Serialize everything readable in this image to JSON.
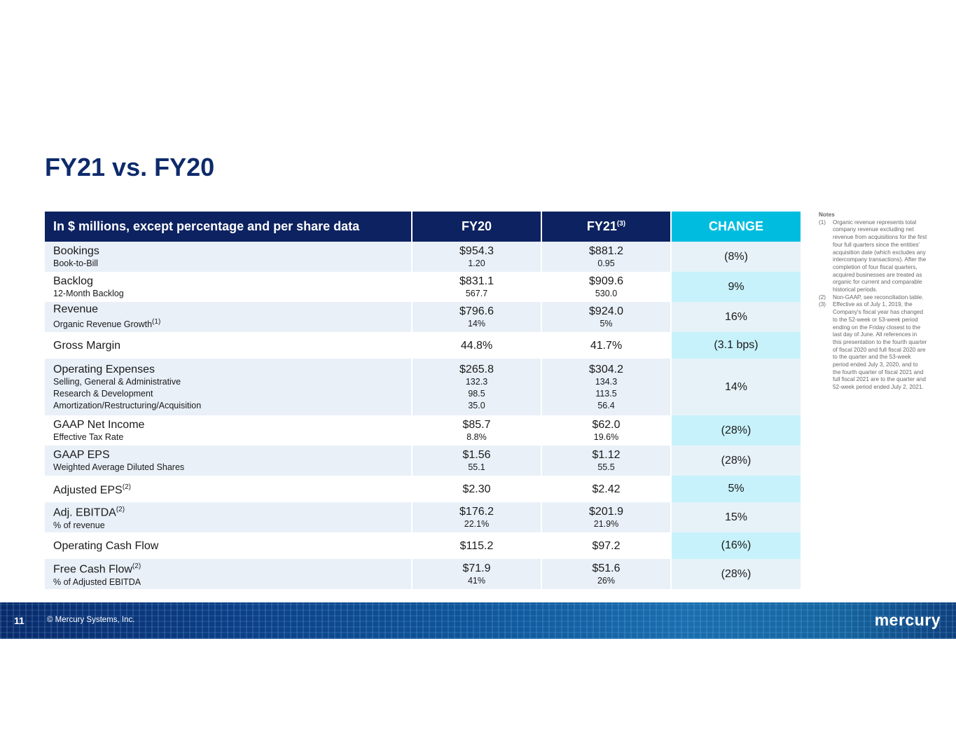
{
  "title": "FY21 vs. FY20",
  "table": {
    "headers": {
      "label": "In $ millions, except percentage and per share data",
      "fy20": "FY20",
      "fy21": "FY21",
      "fy21_sup": "(3)",
      "change": "CHANGE"
    },
    "rows": [
      {
        "label": "Bookings",
        "sub": [
          "Book-to-Bill"
        ],
        "fy20": "$954.3",
        "fy20_sub": [
          "1.20"
        ],
        "fy21": "$881.2",
        "fy21_sub": [
          "0.95"
        ],
        "change": "(8%)"
      },
      {
        "label": "Backlog",
        "sub": [
          "12-Month Backlog"
        ],
        "fy20": "$831.1",
        "fy20_sub": [
          "567.7"
        ],
        "fy21": "$909.6",
        "fy21_sub": [
          "530.0"
        ],
        "change": "9%"
      },
      {
        "label": "Revenue",
        "sub": [
          "Organic Revenue Growth"
        ],
        "sub_sup": "(1)",
        "fy20": "$796.6",
        "fy20_sub": [
          "14%"
        ],
        "fy21": "$924.0",
        "fy21_sub": [
          "5%"
        ],
        "change": "16%"
      },
      {
        "label": "Gross Margin",
        "fy20": "44.8%",
        "fy21": "41.7%",
        "change": "(3.1 bps)"
      },
      {
        "label": "Operating Expenses",
        "sub": [
          "Selling, General & Administrative",
          "Research & Development",
          "Amortization/Restructuring/Acquisition"
        ],
        "fy20": "$265.8",
        "fy20_sub": [
          "132.3",
          "98.5",
          "35.0"
        ],
        "fy21": "$304.2",
        "fy21_sub": [
          "134.3",
          "113.5",
          "56.4"
        ],
        "change": "14%"
      },
      {
        "label": "GAAP Net Income",
        "sub": [
          "Effective Tax Rate"
        ],
        "fy20": "$85.7",
        "fy20_sub": [
          "8.8%"
        ],
        "fy21": "$62.0",
        "fy21_sub": [
          "19.6%"
        ],
        "change": "(28%)"
      },
      {
        "label": "GAAP EPS",
        "sub": [
          "Weighted Average Diluted Shares"
        ],
        "fy20": "$1.56",
        "fy20_sub": [
          "55.1"
        ],
        "fy21": "$1.12",
        "fy21_sub": [
          "55.5"
        ],
        "change": "(28%)"
      },
      {
        "label": "Adjusted EPS",
        "label_sup": "(2)",
        "fy20": "$2.30",
        "fy21": "$2.42",
        "change": "5%"
      },
      {
        "label": "Adj. EBITDA",
        "label_sup": "(2)",
        "sub": [
          "% of revenue"
        ],
        "fy20": "$176.2",
        "fy20_sub": [
          "22.1%"
        ],
        "fy21": "$201.9",
        "fy21_sub": [
          "21.9%"
        ],
        "change": "15%"
      },
      {
        "label": "Operating Cash Flow",
        "fy20": "$115.2",
        "fy21": "$97.2",
        "change": "(16%)"
      },
      {
        "label": "Free Cash Flow",
        "label_sup": "(2)",
        "sub": [
          "% of Adjusted EBITDA"
        ],
        "fy20": "$71.9",
        "fy20_sub": [
          "41%"
        ],
        "fy21": "$51.6",
        "fy21_sub": [
          "26%"
        ],
        "change": "(28%)"
      }
    ]
  },
  "notes": {
    "heading": "Notes",
    "items": [
      {
        "num": "(1)",
        "text": "Organic revenue represents total company revenue excluding net revenue from acquisitions for the first four full quarters since the entities' acquisition date (which excludes any intercompany transactions). After the completion of four fiscal quarters, acquired businesses are treated as organic for current and comparable historical periods."
      },
      {
        "num": "(2)",
        "text": "Non-GAAP, see reconciliation table."
      },
      {
        "num": "(3)",
        "text": "Effective as of July 1, 2019, the Company's fiscal year has changed to the 52-week or 53-week period ending on the Friday closest to the last day of June. All references in this presentation to the fourth quarter of fiscal 2020 and full fiscal 2020 are to the quarter and the 53-week period ended July 3, 2020, and to the fourth quarter of fiscal 2021 and full fiscal 2021 are to the quarter and 52-week period ended July 2, 2021."
      }
    ]
  },
  "footer": {
    "page_number": "11",
    "copyright": "© Mercury Systems, Inc.",
    "logo": "mercury"
  },
  "colors": {
    "title": "#0d2a6b",
    "header_bg": "#0d2260",
    "change_header_bg": "#00bde0",
    "row_alt": "#e9f0f8",
    "change_highlight": "#c8f2fb"
  }
}
